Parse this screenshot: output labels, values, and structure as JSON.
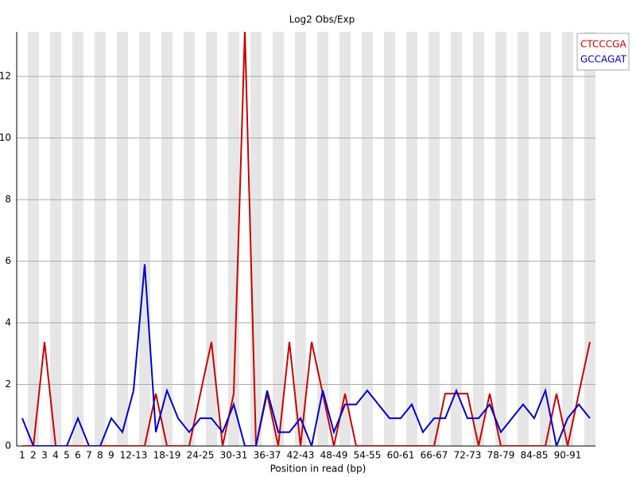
{
  "chart_data": {
    "type": "line",
    "title": "Log2 Obs/Exp",
    "xlabel": "Position in read (bp)",
    "categories": [
      "1",
      "2",
      "3",
      "4",
      "5",
      "6",
      "7",
      "8",
      "9",
      null,
      "12-13",
      null,
      null,
      "18-19",
      null,
      null,
      "24-25",
      null,
      null,
      "30-31",
      null,
      null,
      "36-37",
      null,
      null,
      "42-43",
      null,
      null,
      "48-49",
      null,
      null,
      "54-55",
      null,
      null,
      "60-61",
      null,
      null,
      "66-67",
      null,
      null,
      "72-73",
      null,
      null,
      "78-79",
      null,
      null,
      "84-85",
      null,
      null,
      "90-91",
      null,
      null
    ],
    "series": [
      {
        "name": "CTCCCGA",
        "color": "#cc0000",
        "values": [
          0,
          0,
          3.38,
          0,
          0,
          0,
          0,
          0,
          0,
          0,
          0,
          0,
          1.7,
          0,
          0,
          0,
          1.7,
          3.38,
          0,
          1.7,
          13.5,
          0,
          1.7,
          0,
          3.38,
          0,
          3.38,
          1.7,
          0,
          1.7,
          0,
          0,
          0,
          0,
          0,
          0,
          0,
          0,
          1.7,
          1.7,
          1.7,
          0,
          1.7,
          0,
          0,
          0,
          0,
          0,
          1.7,
          0,
          1.7,
          3.38
        ]
      },
      {
        "name": "GCCAGAT",
        "color": "#0000cc",
        "values": [
          0.9,
          0,
          0,
          0,
          0,
          0.9,
          0,
          0,
          0.9,
          0.45,
          1.8,
          5.9,
          0.45,
          1.8,
          0.9,
          0.45,
          0.9,
          0.9,
          0.45,
          1.35,
          0,
          0,
          1.8,
          0.45,
          0.45,
          0.9,
          0,
          1.8,
          0.45,
          1.35,
          1.35,
          1.8,
          1.35,
          0.9,
          0.9,
          1.35,
          0.45,
          0.9,
          0.9,
          1.8,
          0.9,
          0.9,
          1.35,
          0.45,
          0.9,
          1.35,
          0.9,
          1.8,
          0,
          0.9,
          1.35,
          0.9
        ]
      }
    ],
    "ylim": [
      0,
      13.45
    ],
    "yticks": [
      0,
      2,
      4,
      6,
      8,
      10,
      12
    ],
    "grid": true,
    "legend": "top-right"
  }
}
